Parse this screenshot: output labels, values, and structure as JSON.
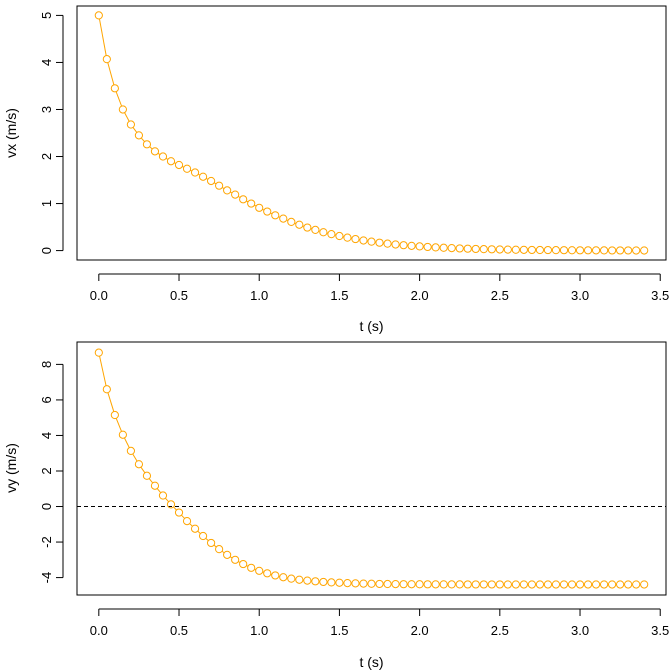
{
  "chart_data": [
    {
      "type": "scatter",
      "xlabel": "t (s)",
      "ylabel": "vx (m/s)",
      "xlim": [
        -0.136,
        3.536
      ],
      "ylim": [
        -0.2,
        5.2
      ],
      "x_ticks": [
        0,
        0.5,
        1,
        1.5,
        2,
        2.5,
        3,
        3.5
      ],
      "x_tick_labels": [
        "0.0",
        "0.5",
        "1.0",
        "1.5",
        "2.0",
        "2.5",
        "3.0",
        "3.5"
      ],
      "y_ticks": [
        0,
        1,
        2,
        3,
        4,
        5
      ],
      "y_tick_labels": [
        "0",
        "1",
        "2",
        "3",
        "4",
        "5"
      ],
      "series_color": "#ffa500",
      "marker": "open-circle",
      "connected_by_line": true,
      "grid": false,
      "x": [
        0.0,
        0.05,
        0.1,
        0.15,
        0.2,
        0.25,
        0.3,
        0.35,
        0.4,
        0.45,
        0.5,
        0.55,
        0.6,
        0.65,
        0.7,
        0.75,
        0.8,
        0.85,
        0.9,
        0.95,
        1.0,
        1.05,
        1.1,
        1.15,
        1.2,
        1.25,
        1.3,
        1.35,
        1.4,
        1.45,
        1.5,
        1.55,
        1.6,
        1.65,
        1.7,
        1.75,
        1.8,
        1.85,
        1.9,
        1.95,
        2.0,
        2.05,
        2.1,
        2.15,
        2.2,
        2.25,
        2.3,
        2.35,
        2.4,
        2.45,
        2.5,
        2.55,
        2.6,
        2.65,
        2.7,
        2.75,
        2.8,
        2.85,
        2.9,
        2.95,
        3.0,
        3.05,
        3.1,
        3.15,
        3.2,
        3.25,
        3.3,
        3.35,
        3.4
      ],
      "y": [
        5.0,
        4.07,
        3.45,
        3.0,
        2.68,
        2.45,
        2.26,
        2.11,
        2.0,
        1.9,
        1.82,
        1.74,
        1.66,
        1.57,
        1.48,
        1.38,
        1.28,
        1.19,
        1.09,
        1.0,
        0.91,
        0.83,
        0.75,
        0.68,
        0.61,
        0.55,
        0.49,
        0.44,
        0.39,
        0.35,
        0.31,
        0.275,
        0.245,
        0.215,
        0.19,
        0.168,
        0.148,
        0.13,
        0.115,
        0.101,
        0.089,
        0.078,
        0.068,
        0.06,
        0.053,
        0.046,
        0.04,
        0.035,
        0.031,
        0.027,
        0.024,
        0.021,
        0.018,
        0.016,
        0.014,
        0.012,
        0.011,
        0.0095,
        0.0083,
        0.0073,
        0.0064,
        0.0056,
        0.0049,
        0.0043,
        0.0038,
        0.0033,
        0.0029,
        0.0025,
        0.0022
      ]
    },
    {
      "type": "scatter",
      "xlabel": "t (s)",
      "ylabel": "vy (m/s)",
      "xlim": [
        -0.136,
        3.536
      ],
      "ylim": [
        -4.98,
        9.26
      ],
      "x_ticks": [
        0,
        0.5,
        1,
        1.5,
        2,
        2.5,
        3,
        3.5
      ],
      "x_tick_labels": [
        "0.0",
        "0.5",
        "1.0",
        "1.5",
        "2.0",
        "2.5",
        "3.0",
        "3.5"
      ],
      "y_ticks": [
        -4,
        -2,
        0,
        2,
        4,
        6,
        8
      ],
      "y_tick_labels": [
        "-4",
        "-2",
        "0",
        "2",
        "4",
        "6",
        "8"
      ],
      "series_color": "#ffa500",
      "marker": "open-circle",
      "connected_by_line": true,
      "grid": false,
      "reference_line": {
        "y": 0,
        "style": "dashed",
        "color": "#000000"
      },
      "x": [
        0.0,
        0.05,
        0.1,
        0.15,
        0.2,
        0.25,
        0.3,
        0.35,
        0.4,
        0.45,
        0.5,
        0.55,
        0.6,
        0.65,
        0.7,
        0.75,
        0.8,
        0.85,
        0.9,
        0.95,
        1.0,
        1.05,
        1.1,
        1.15,
        1.2,
        1.25,
        1.3,
        1.35,
        1.4,
        1.45,
        1.5,
        1.55,
        1.6,
        1.65,
        1.7,
        1.75,
        1.8,
        1.85,
        1.9,
        1.95,
        2.0,
        2.05,
        2.1,
        2.15,
        2.2,
        2.25,
        2.3,
        2.35,
        2.4,
        2.45,
        2.5,
        2.55,
        2.6,
        2.65,
        2.7,
        2.75,
        2.8,
        2.85,
        2.9,
        2.95,
        3.0,
        3.05,
        3.1,
        3.15,
        3.2,
        3.25,
        3.3,
        3.35,
        3.4
      ],
      "y": [
        8.66,
        6.6,
        5.15,
        4.04,
        3.13,
        2.38,
        1.73,
        1.17,
        0.62,
        0.12,
        -0.34,
        -0.82,
        -1.25,
        -1.66,
        -2.05,
        -2.4,
        -2.72,
        -3.0,
        -3.24,
        -3.45,
        -3.62,
        -3.76,
        -3.88,
        -3.98,
        -4.06,
        -4.12,
        -4.17,
        -4.21,
        -4.245,
        -4.27,
        -4.29,
        -4.31,
        -4.325,
        -4.338,
        -4.348,
        -4.356,
        -4.362,
        -4.367,
        -4.371,
        -4.374,
        -4.377,
        -4.379,
        -4.381,
        -4.382,
        -4.383,
        -4.384,
        -4.385,
        -4.385,
        -4.386,
        -4.386,
        -4.386,
        -4.387,
        -4.387,
        -4.387,
        -4.387,
        -4.387,
        -4.387,
        -4.387,
        -4.387,
        -4.387,
        -4.387,
        -4.387,
        -4.387,
        -4.387,
        -4.387,
        -4.387,
        -4.387,
        -4.387,
        -4.387
      ]
    }
  ]
}
